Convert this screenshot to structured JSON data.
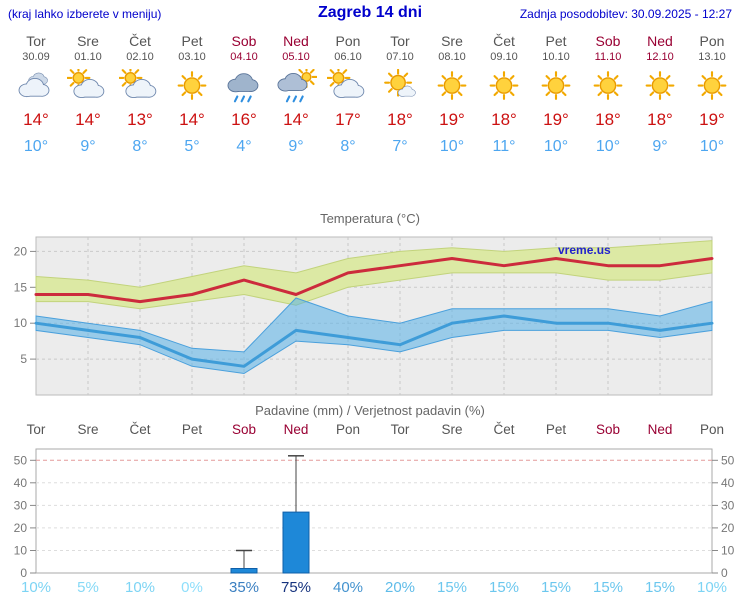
{
  "header": {
    "left_note": "(kraj lahko izberete v meniju)",
    "title": "Zagreb 14 dni",
    "updated": "Zadnja posodobitev: 30.09.2025 - 12:27"
  },
  "colors": {
    "accent_blue": "#0000cc",
    "weekday": "#555555",
    "weekend": "#990033",
    "temp_high": "#cc1111",
    "temp_low": "#4da6f0",
    "plot_bg": "#ececec",
    "grid": "#c9c9c9",
    "axis_text": "#777777",
    "watermark": "#2222cc"
  },
  "days": [
    {
      "name": "Tor",
      "date": "30.09",
      "weekend": false,
      "icon": "cloudy",
      "high": "14°",
      "low": "10°"
    },
    {
      "name": "Sre",
      "date": "01.10",
      "weekend": false,
      "icon": "partly-sunny",
      "high": "14°",
      "low": "9°"
    },
    {
      "name": "Čet",
      "date": "02.10",
      "weekend": false,
      "icon": "partly-sunny",
      "high": "13°",
      "low": "8°"
    },
    {
      "name": "Pet",
      "date": "03.10",
      "weekend": false,
      "icon": "sunny",
      "high": "14°",
      "low": "5°"
    },
    {
      "name": "Sob",
      "date": "04.10",
      "weekend": true,
      "icon": "rain",
      "high": "16°",
      "low": "4°"
    },
    {
      "name": "Ned",
      "date": "05.10",
      "weekend": true,
      "icon": "sun-rain",
      "high": "14°",
      "low": "9°"
    },
    {
      "name": "Pon",
      "date": "06.10",
      "weekend": false,
      "icon": "partly-sunny",
      "high": "17°",
      "low": "8°"
    },
    {
      "name": "Tor",
      "date": "07.10",
      "weekend": false,
      "icon": "mostly-sunny",
      "high": "18°",
      "low": "7°"
    },
    {
      "name": "Sre",
      "date": "08.10",
      "weekend": false,
      "icon": "sunny",
      "high": "19°",
      "low": "10°"
    },
    {
      "name": "Čet",
      "date": "09.10",
      "weekend": false,
      "icon": "sunny",
      "high": "18°",
      "low": "11°"
    },
    {
      "name": "Pet",
      "date": "10.10",
      "weekend": false,
      "icon": "sunny",
      "high": "19°",
      "low": "10°"
    },
    {
      "name": "Sob",
      "date": "11.10",
      "weekend": true,
      "icon": "sunny",
      "high": "18°",
      "low": "10°"
    },
    {
      "name": "Ned",
      "date": "12.10",
      "weekend": true,
      "icon": "sunny",
      "high": "18°",
      "low": "9°"
    },
    {
      "name": "Pon",
      "date": "13.10",
      "weekend": false,
      "icon": "sunny",
      "high": "19°",
      "low": "10°"
    }
  ],
  "chart_data": [
    {
      "type": "line",
      "title": "Temperatura (°C)",
      "watermark": "vreme.us",
      "x_labels": [
        "Tor",
        "Sre",
        "Čet",
        "Pet",
        "Sob",
        "Ned",
        "Pon",
        "Tor",
        "Sre",
        "Čet",
        "Pet",
        "Sob",
        "Ned",
        "Pon"
      ],
      "ylim": [
        0,
        22
      ],
      "yticks": [
        5,
        10,
        15,
        20
      ],
      "grid": true,
      "series": [
        {
          "name": "max-temp-range",
          "role": "band",
          "fill": "#dce9a4",
          "stroke": "#c2d37c",
          "opacity": 1,
          "upper": [
            16.5,
            16,
            15,
            16.5,
            18,
            17,
            19,
            20,
            20.5,
            20,
            20.5,
            20.5,
            21,
            21.5
          ],
          "lower": [
            13,
            13,
            12,
            13,
            14,
            12.5,
            15,
            16,
            17,
            17,
            17,
            16,
            16,
            17
          ]
        },
        {
          "name": "min-temp-range",
          "role": "band",
          "fill": "#55b0e8",
          "stroke": "#4aa0dc",
          "opacity": 0.55,
          "upper": [
            11,
            10,
            9,
            6.5,
            6,
            13.5,
            11,
            10,
            12,
            12,
            12,
            12,
            11,
            13
          ],
          "lower": [
            9,
            8,
            7,
            4,
            3,
            7.5,
            7,
            6,
            8,
            9,
            9,
            9,
            8,
            9
          ]
        },
        {
          "name": "max-temp",
          "role": "line",
          "color": "#cc2b3c",
          "width": 3,
          "values": [
            14,
            14,
            13,
            14,
            16,
            14,
            17,
            18,
            19,
            18,
            19,
            18,
            18,
            19
          ]
        },
        {
          "name": "min-temp",
          "role": "line",
          "color": "#3e9cd8",
          "width": 3,
          "values": [
            10,
            9,
            8,
            5,
            4,
            9,
            8,
            7,
            10,
            11,
            10,
            10,
            9,
            10
          ]
        }
      ]
    },
    {
      "type": "bar",
      "title": "Padavine (mm) / Verjetnost padavin (%)",
      "x_labels": [
        "Tor",
        "Sre",
        "Čet",
        "Pet",
        "Sob",
        "Ned",
        "Pon",
        "Tor",
        "Sre",
        "Čet",
        "Pet",
        "Sob",
        "Ned",
        "Pon"
      ],
      "ylim": [
        0,
        55
      ],
      "yticks": [
        0,
        10,
        20,
        30,
        40,
        50
      ],
      "bar_fill": "#1e88d8",
      "bar_stroke": "#0f5fa8",
      "values": [
        0,
        0,
        0,
        0,
        2,
        27,
        0,
        0,
        0,
        0,
        0,
        0,
        0,
        0
      ],
      "whisker_max": [
        0,
        0,
        0,
        0,
        10,
        52,
        0,
        0,
        0,
        0,
        0,
        0,
        0,
        0
      ],
      "probabilities": [
        {
          "label": "10%",
          "color": "#7dd4f4"
        },
        {
          "label": "5%",
          "color": "#86d9f6"
        },
        {
          "label": "10%",
          "color": "#7dd4f4"
        },
        {
          "label": "0%",
          "color": "#8edefb"
        },
        {
          "label": "35%",
          "color": "#3a7fc1"
        },
        {
          "label": "75%",
          "color": "#16337e"
        },
        {
          "label": "40%",
          "color": "#4493cf"
        },
        {
          "label": "20%",
          "color": "#5fbce9"
        },
        {
          "label": "15%",
          "color": "#6cc7ee"
        },
        {
          "label": "15%",
          "color": "#6cc7ee"
        },
        {
          "label": "15%",
          "color": "#6cc7ee"
        },
        {
          "label": "15%",
          "color": "#6cc7ee"
        },
        {
          "label": "15%",
          "color": "#6cc7ee"
        },
        {
          "label": "10%",
          "color": "#7dd4f4"
        }
      ]
    }
  ]
}
